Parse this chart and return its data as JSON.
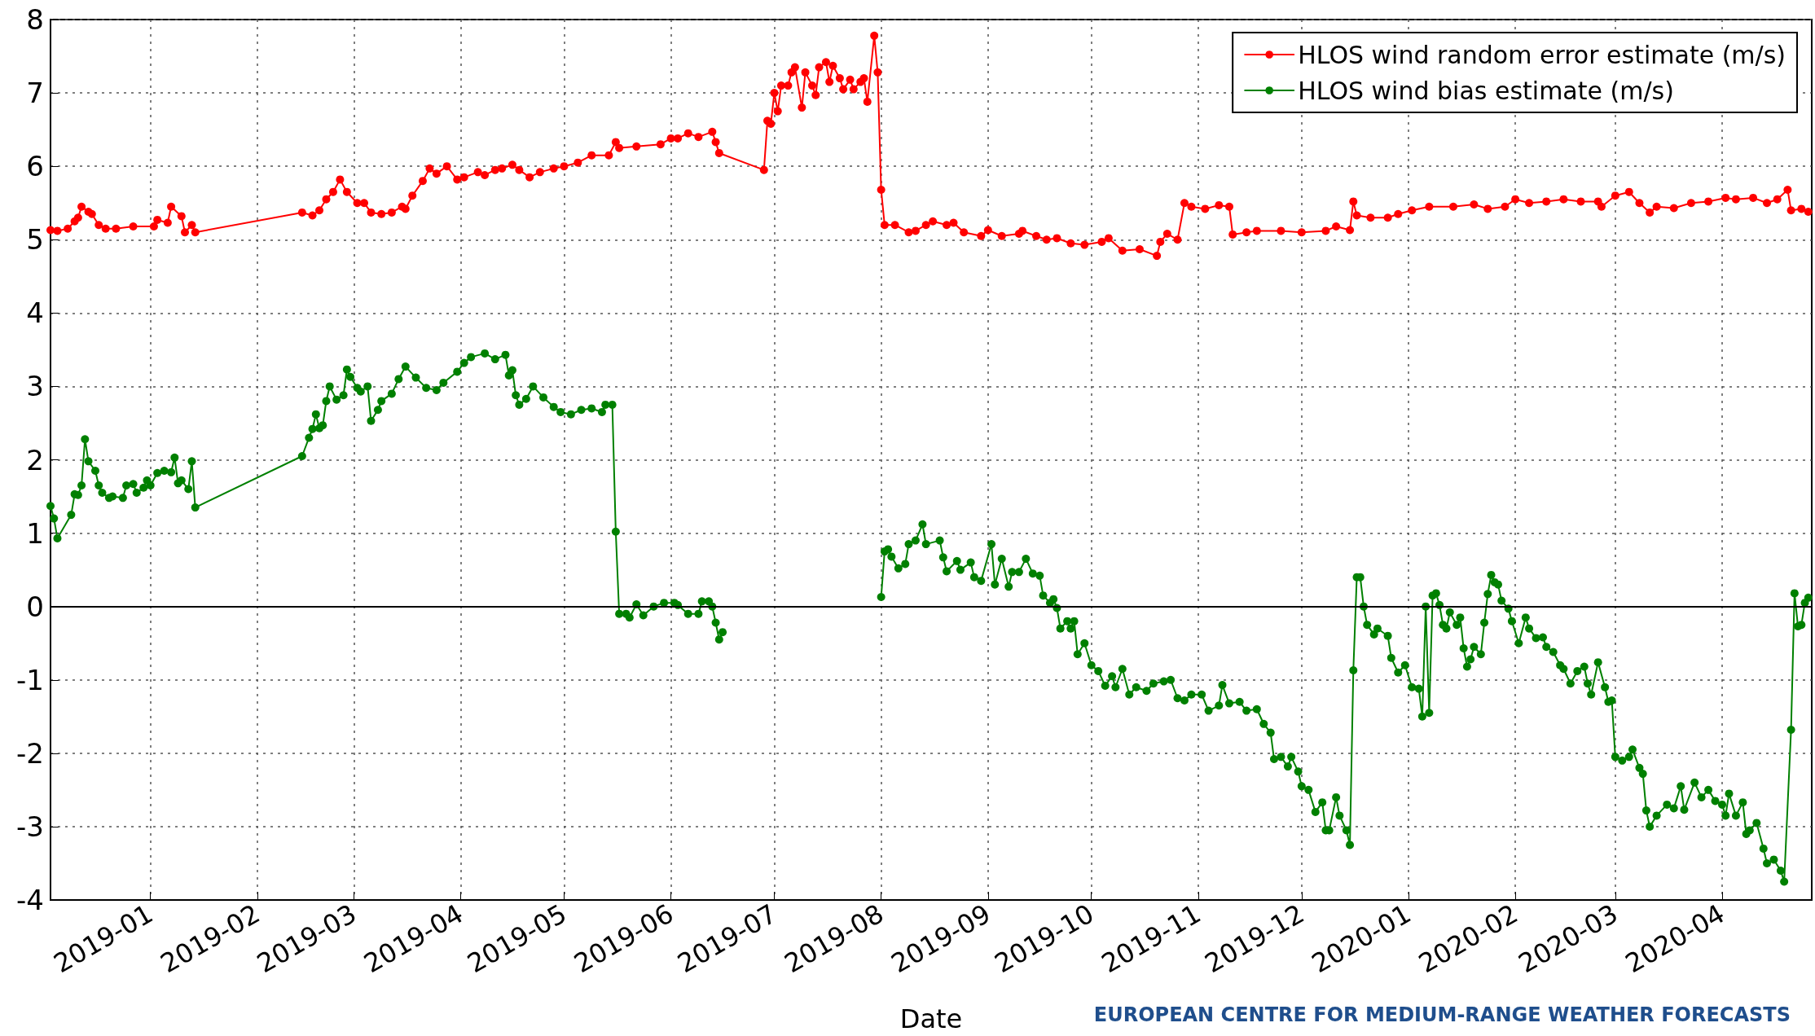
{
  "chart_data": {
    "type": "line",
    "xlabel": "Date",
    "annotations": [
      "EUROPEAN CENTRE FOR MEDIUM-RANGE WEATHER FORECASTS"
    ],
    "xlim": [
      "2018-12-03",
      "2020-04-27"
    ],
    "xticks": [
      {
        "value": "2019-01-01",
        "label": "2019-01"
      },
      {
        "value": "2019-02-01",
        "label": "2019-02"
      },
      {
        "value": "2019-03-01",
        "label": "2019-03"
      },
      {
        "value": "2019-04-01",
        "label": "2019-04"
      },
      {
        "value": "2019-05-01",
        "label": "2019-05"
      },
      {
        "value": "2019-06-01",
        "label": "2019-06"
      },
      {
        "value": "2019-07-01",
        "label": "2019-07"
      },
      {
        "value": "2019-08-01",
        "label": "2019-08"
      },
      {
        "value": "2019-09-01",
        "label": "2019-09"
      },
      {
        "value": "2019-10-01",
        "label": "2019-10"
      },
      {
        "value": "2019-11-01",
        "label": "2019-11"
      },
      {
        "value": "2019-12-01",
        "label": "2019-12"
      },
      {
        "value": "2020-01-01",
        "label": "2020-01"
      },
      {
        "value": "2020-02-01",
        "label": "2020-02"
      },
      {
        "value": "2020-03-01",
        "label": "2020-03"
      },
      {
        "value": "2020-04-01",
        "label": "2020-04"
      }
    ],
    "ylim": [
      -4,
      8
    ],
    "yticks": [
      -4,
      -3,
      -2,
      -1,
      0,
      1,
      2,
      3,
      4,
      5,
      6,
      7,
      8
    ],
    "grid": true,
    "legend": "top right",
    "marker": "circle",
    "line_style": "solid",
    "ref_lines": [
      {
        "axis": "y",
        "value": 0,
        "color": "#000000",
        "line_style": "solid"
      }
    ],
    "series": [
      {
        "name": "HLOS wind random error estimate (m/s)",
        "color": "#ff0000",
        "x": [
          "2018-12-03",
          "2018-12-05",
          "2018-12-08",
          "2018-12-10",
          "2018-12-11",
          "2018-12-12",
          "2018-12-14",
          "2018-12-15",
          "2018-12-17",
          "2018-12-19",
          "2018-12-22",
          "2018-12-27",
          "2019-01-02",
          "2019-01-03",
          "2019-01-06",
          "2019-01-07",
          "2019-01-10",
          "2019-01-11",
          "2019-01-13",
          "2019-01-14",
          "2019-02-14",
          "2019-02-17",
          "2019-02-19",
          "2019-02-21",
          "2019-02-23",
          "2019-02-25",
          "2019-02-27",
          "2019-03-02",
          "2019-03-04",
          "2019-03-06",
          "2019-03-09",
          "2019-03-12",
          "2019-03-15",
          "2019-03-16",
          "2019-03-18",
          "2019-03-21",
          "2019-03-23",
          "2019-03-25",
          "2019-03-28",
          "2019-03-31",
          "2019-04-02",
          "2019-04-06",
          "2019-04-08",
          "2019-04-11",
          "2019-04-13",
          "2019-04-16",
          "2019-04-18",
          "2019-04-21",
          "2019-04-24",
          "2019-04-28",
          "2019-05-01",
          "2019-05-05",
          "2019-05-09",
          "2019-05-14",
          "2019-05-16",
          "2019-05-17",
          "2019-05-22",
          "2019-05-29",
          "2019-06-01",
          "2019-06-03",
          "2019-06-06",
          "2019-06-09",
          "2019-06-13",
          "2019-06-14",
          "2019-06-15",
          "2019-06-28",
          "2019-06-29",
          "2019-06-30",
          "2019-07-01",
          "2019-07-02",
          "2019-07-03",
          "2019-07-05",
          "2019-07-06",
          "2019-07-07",
          "2019-07-09",
          "2019-07-10",
          "2019-07-12",
          "2019-07-13",
          "2019-07-14",
          "2019-07-16",
          "2019-07-17",
          "2019-07-18",
          "2019-07-20",
          "2019-07-21",
          "2019-07-23",
          "2019-07-24",
          "2019-07-26",
          "2019-07-27",
          "2019-07-28",
          "2019-07-30",
          "2019-07-31",
          "2019-08-01",
          "2019-08-02",
          "2019-08-05",
          "2019-08-09",
          "2019-08-11",
          "2019-08-14",
          "2019-08-16",
          "2019-08-20",
          "2019-08-22",
          "2019-08-25",
          "2019-08-30",
          "2019-09-01",
          "2019-09-05",
          "2019-09-10",
          "2019-09-11",
          "2019-09-15",
          "2019-09-18",
          "2019-09-21",
          "2019-09-25",
          "2019-09-29",
          "2019-10-04",
          "2019-10-06",
          "2019-10-10",
          "2019-10-15",
          "2019-10-20",
          "2019-10-21",
          "2019-10-23",
          "2019-10-26",
          "2019-10-28",
          "2019-10-30",
          "2019-11-03",
          "2019-11-07",
          "2019-11-10",
          "2019-11-11",
          "2019-11-15",
          "2019-11-18",
          "2019-11-25",
          "2019-12-01",
          "2019-12-08",
          "2019-12-11",
          "2019-12-15",
          "2019-12-16",
          "2019-12-17",
          "2019-12-21",
          "2019-12-26",
          "2019-12-29",
          "2020-01-02",
          "2020-01-07",
          "2020-01-14",
          "2020-01-20",
          "2020-01-24",
          "2020-01-29",
          "2020-02-01",
          "2020-02-05",
          "2020-02-10",
          "2020-02-15",
          "2020-02-20",
          "2020-02-25",
          "2020-02-26",
          "2020-03-01",
          "2020-03-05",
          "2020-03-08",
          "2020-03-11",
          "2020-03-13",
          "2020-03-18",
          "2020-03-23",
          "2020-03-28",
          "2020-04-02",
          "2020-04-05",
          "2020-04-10",
          "2020-04-14",
          "2020-04-17",
          "2020-04-20",
          "2020-04-21",
          "2020-04-24",
          "2020-04-26"
        ],
        "values": [
          5.13,
          5.12,
          5.15,
          5.25,
          5.3,
          5.45,
          5.38,
          5.35,
          5.2,
          5.15,
          5.15,
          5.18,
          5.18,
          5.27,
          5.23,
          5.45,
          5.32,
          5.1,
          5.2,
          5.1,
          5.37,
          5.33,
          5.4,
          5.55,
          5.65,
          5.82,
          5.65,
          5.5,
          5.5,
          5.37,
          5.35,
          5.37,
          5.45,
          5.42,
          5.6,
          5.8,
          5.97,
          5.9,
          6.0,
          5.82,
          5.85,
          5.92,
          5.88,
          5.95,
          5.97,
          6.02,
          5.95,
          5.85,
          5.92,
          5.97,
          6.0,
          6.05,
          6.15,
          6.15,
          6.33,
          6.25,
          6.27,
          6.3,
          6.38,
          6.38,
          6.45,
          6.4,
          6.47,
          6.33,
          6.18,
          5.95,
          6.62,
          6.58,
          7.0,
          6.75,
          7.1,
          7.1,
          7.28,
          7.35,
          6.8,
          7.28,
          7.1,
          6.97,
          7.35,
          7.42,
          7.15,
          7.37,
          7.2,
          7.05,
          7.18,
          7.05,
          7.15,
          7.2,
          6.88,
          7.78,
          7.28,
          5.68,
          5.2,
          5.2,
          5.1,
          5.12,
          5.2,
          5.25,
          5.2,
          5.23,
          5.1,
          5.05,
          5.13,
          5.05,
          5.08,
          5.12,
          5.05,
          5.0,
          5.02,
          4.95,
          4.93,
          4.97,
          5.02,
          4.85,
          4.87,
          4.78,
          4.97,
          5.08,
          5.0,
          5.5,
          5.45,
          5.42,
          5.47,
          5.45,
          5.07,
          5.1,
          5.12,
          5.12,
          5.1,
          5.12,
          5.18,
          5.13,
          5.52,
          5.33,
          5.3,
          5.3,
          5.35,
          5.4,
          5.45,
          5.45,
          5.48,
          5.42,
          5.45,
          5.55,
          5.5,
          5.52,
          5.55,
          5.52,
          5.52,
          5.45,
          5.6,
          5.65,
          5.5,
          5.37,
          5.45,
          5.43,
          5.5,
          5.52,
          5.57,
          5.55,
          5.57,
          5.5,
          5.55,
          5.68,
          5.4,
          5.42,
          5.38
        ]
      },
      {
        "name": "HLOS wind bias estimate (m/s)",
        "color": "#008000",
        "x": [
          "2018-12-03",
          "2018-12-04",
          "2018-12-05",
          "2018-12-09",
          "2018-12-10",
          "2018-12-11",
          "2018-12-12",
          "2018-12-13",
          "2018-12-14",
          "2018-12-16",
          "2018-12-17",
          "2018-12-18",
          "2018-12-20",
          "2018-12-21",
          "2018-12-24",
          "2018-12-25",
          "2018-12-27",
          "2018-12-28",
          "2018-12-30",
          "2018-12-31",
          "2019-01-01",
          "2019-01-03",
          "2019-01-05",
          "2019-01-07",
          "2019-01-08",
          "2019-01-09",
          "2019-01-10",
          "2019-01-12",
          "2019-01-13",
          "2019-01-14",
          "2019-02-14",
          "2019-02-16",
          "2019-02-17",
          "2019-02-18",
          "2019-02-19",
          "2019-02-20",
          "2019-02-21",
          "2019-02-22",
          "2019-02-24",
          "2019-02-26",
          "2019-02-27",
          "2019-02-28",
          "2019-03-02",
          "2019-03-03",
          "2019-03-05",
          "2019-03-06",
          "2019-03-08",
          "2019-03-09",
          "2019-03-12",
          "2019-03-14",
          "2019-03-16",
          "2019-03-19",
          "2019-03-22",
          "2019-03-25",
          "2019-03-27",
          "2019-03-31",
          "2019-04-02",
          "2019-04-04",
          "2019-04-08",
          "2019-04-11",
          "2019-04-14",
          "2019-04-15",
          "2019-04-16",
          "2019-04-17",
          "2019-04-18",
          "2019-04-20",
          "2019-04-22",
          "2019-04-25",
          "2019-04-28",
          "2019-04-30",
          "2019-05-03",
          "2019-05-06",
          "2019-05-09",
          "2019-05-12",
          "2019-05-13",
          "2019-05-15",
          "2019-05-16",
          "2019-05-17",
          "2019-05-19",
          "2019-05-20",
          "2019-05-22",
          "2019-05-24",
          "2019-05-27",
          "2019-05-30",
          "2019-06-02",
          "2019-06-03",
          "2019-06-06",
          "2019-06-09",
          "2019-06-10",
          "2019-06-12",
          "2019-06-13",
          "2019-06-14",
          "2019-06-15",
          "2019-06-16",
          "2019-06-28",
          "2019-07-31",
          "2019-08-01",
          "2019-08-02",
          "2019-08-03",
          "2019-08-04",
          "2019-08-06",
          "2019-08-08",
          "2019-08-09",
          "2019-08-11",
          "2019-08-13",
          "2019-08-14",
          "2019-08-18",
          "2019-08-19",
          "2019-08-20",
          "2019-08-23",
          "2019-08-24",
          "2019-08-27",
          "2019-08-28",
          "2019-08-30",
          "2019-09-02",
          "2019-09-03",
          "2019-09-05",
          "2019-09-07",
          "2019-09-08",
          "2019-09-10",
          "2019-09-12",
          "2019-09-14",
          "2019-09-16",
          "2019-09-17",
          "2019-09-19",
          "2019-09-20",
          "2019-09-21",
          "2019-09-22",
          "2019-09-24",
          "2019-09-25",
          "2019-09-26",
          "2019-09-27",
          "2019-09-29",
          "2019-10-01",
          "2019-10-03",
          "2019-10-05",
          "2019-10-07",
          "2019-10-08",
          "2019-10-10",
          "2019-10-12",
          "2019-10-14",
          "2019-10-17",
          "2019-10-19",
          "2019-10-22",
          "2019-10-24",
          "2019-10-26",
          "2019-10-28",
          "2019-10-30",
          "2019-11-02",
          "2019-11-04",
          "2019-11-07",
          "2019-11-08",
          "2019-11-10",
          "2019-11-13",
          "2019-11-15",
          "2019-11-18",
          "2019-11-20",
          "2019-11-22",
          "2019-11-23",
          "2019-11-25",
          "2019-11-27",
          "2019-11-28",
          "2019-11-30",
          "2019-12-01",
          "2019-12-03",
          "2019-12-05",
          "2019-12-07",
          "2019-12-08",
          "2019-12-09",
          "2019-12-11",
          "2019-12-12",
          "2019-12-14",
          "2019-12-15",
          "2019-12-16",
          "2019-12-17",
          "2019-12-18",
          "2019-12-19",
          "2019-12-20",
          "2019-12-22",
          "2019-12-23",
          "2019-12-26",
          "2019-12-27",
          "2019-12-29",
          "2019-12-31",
          "2020-01-02",
          "2020-01-04",
          "2020-01-05",
          "2020-01-06",
          "2020-01-07",
          "2020-01-08",
          "2020-01-09",
          "2020-01-10",
          "2020-01-11",
          "2020-01-12",
          "2020-01-13",
          "2020-01-15",
          "2020-01-16",
          "2020-01-17",
          "2020-01-18",
          "2020-01-19",
          "2020-01-20",
          "2020-01-22",
          "2020-01-23",
          "2020-01-24",
          "2020-01-25",
          "2020-01-26",
          "2020-01-27",
          "2020-01-28",
          "2020-01-30",
          "2020-01-31",
          "2020-02-02",
          "2020-02-04",
          "2020-02-05",
          "2020-02-07",
          "2020-02-09",
          "2020-02-10",
          "2020-02-12",
          "2020-02-14",
          "2020-02-15",
          "2020-02-17",
          "2020-02-19",
          "2020-02-21",
          "2020-02-22",
          "2020-02-23",
          "2020-02-25",
          "2020-02-27",
          "2020-02-28",
          "2020-02-29",
          "2020-03-01",
          "2020-03-03",
          "2020-03-05",
          "2020-03-06",
          "2020-03-08",
          "2020-03-09",
          "2020-03-10",
          "2020-03-11",
          "2020-03-13",
          "2020-03-16",
          "2020-03-18",
          "2020-03-20",
          "2020-03-21",
          "2020-03-24",
          "2020-03-26",
          "2020-03-28",
          "2020-03-30",
          "2020-04-01",
          "2020-04-02",
          "2020-04-03",
          "2020-04-05",
          "2020-04-07",
          "2020-04-08",
          "2020-04-09",
          "2020-04-11",
          "2020-04-13",
          "2020-04-14",
          "2020-04-16",
          "2020-04-18",
          "2020-04-19",
          "2020-04-21",
          "2020-04-22",
          "2020-04-23",
          "2020-04-24",
          "2020-04-25",
          "2020-04-26"
        ],
        "values": [
          1.37,
          1.2,
          0.93,
          1.25,
          1.53,
          1.52,
          1.65,
          2.28,
          1.98,
          1.85,
          1.65,
          1.55,
          1.48,
          1.5,
          1.48,
          1.65,
          1.67,
          1.55,
          1.62,
          1.72,
          1.65,
          1.82,
          1.85,
          1.83,
          2.03,
          1.68,
          1.72,
          1.6,
          1.98,
          1.35,
          2.05,
          2.3,
          2.42,
          2.62,
          2.43,
          2.47,
          2.8,
          3.0,
          2.82,
          2.88,
          3.23,
          3.13,
          2.98,
          2.93,
          3.0,
          2.53,
          2.68,
          2.8,
          2.9,
          3.1,
          3.27,
          3.12,
          2.98,
          2.95,
          3.05,
          3.2,
          3.32,
          3.4,
          3.45,
          3.37,
          3.43,
          3.15,
          3.22,
          2.88,
          2.75,
          2.83,
          3.0,
          2.85,
          2.72,
          2.65,
          2.62,
          2.68,
          2.7,
          2.65,
          2.75,
          2.75,
          1.02,
          -0.1,
          -0.1,
          -0.15,
          0.03,
          -0.12,
          0.0,
          0.05,
          0.05,
          0.02,
          -0.1,
          -0.1,
          0.07,
          0.07,
          0.0,
          -0.22,
          -0.45,
          -0.35,
          null,
          null,
          0.13,
          0.75,
          0.78,
          0.68,
          0.52,
          0.58,
          0.85,
          0.9,
          1.12,
          0.85,
          0.9,
          0.67,
          0.48,
          0.62,
          0.5,
          0.6,
          0.4,
          0.35,
          0.85,
          0.3,
          0.65,
          0.27,
          0.47,
          0.47,
          0.65,
          0.45,
          0.42,
          0.15,
          0.05,
          0.1,
          -0.02,
          -0.3,
          -0.2,
          -0.3,
          -0.2,
          -0.65,
          -0.5,
          -0.8,
          -0.88,
          -1.08,
          -0.95,
          -1.1,
          -0.85,
          -1.2,
          -1.1,
          -1.15,
          -1.05,
          -1.02,
          -1.0,
          -1.25,
          -1.28,
          -1.2,
          -1.2,
          -1.42,
          -1.35,
          -1.07,
          -1.32,
          -1.3,
          -1.42,
          -1.4,
          -1.6,
          -1.72,
          -2.08,
          -2.05,
          -2.18,
          -2.05,
          -2.25,
          -2.45,
          -2.5,
          -2.8,
          -2.67,
          -3.05,
          -3.05,
          -2.6,
          -2.85,
          -3.05,
          -3.25,
          -0.87,
          0.4,
          0.4,
          0.0,
          -0.25,
          -0.38,
          -0.3,
          -0.4,
          -0.7,
          -0.9,
          -0.8,
          -1.1,
          -1.12,
          -1.5,
          0.0,
          -1.45,
          0.15,
          0.18,
          0.02,
          -0.25,
          -0.3,
          -0.08,
          -0.25,
          -0.15,
          -0.57,
          -0.82,
          -0.72,
          -0.55,
          -0.65,
          -0.22,
          0.17,
          0.43,
          0.33,
          0.3,
          0.08,
          -0.03,
          -0.2,
          -0.5,
          -0.15,
          -0.3,
          -0.43,
          -0.42,
          -0.55,
          -0.62,
          -0.8,
          -0.85,
          -1.05,
          -0.88,
          -0.82,
          -1.05,
          -1.2,
          -0.76,
          -1.1,
          -1.3,
          -1.28,
          -2.05,
          -2.1,
          -2.05,
          -1.95,
          -2.2,
          -2.28,
          -2.78,
          -3.0,
          -2.85,
          -2.7,
          -2.75,
          -2.45,
          -2.77,
          -2.4,
          -2.6,
          -2.5,
          -2.65,
          -2.7,
          -2.85,
          -2.55,
          -2.85,
          -2.67,
          -3.1,
          -3.05,
          -2.95,
          -3.3,
          -3.5,
          -3.45,
          -3.6,
          -3.75,
          -1.68,
          0.18,
          -0.27,
          -0.25,
          0.05,
          0.12
        ]
      }
    ]
  }
}
